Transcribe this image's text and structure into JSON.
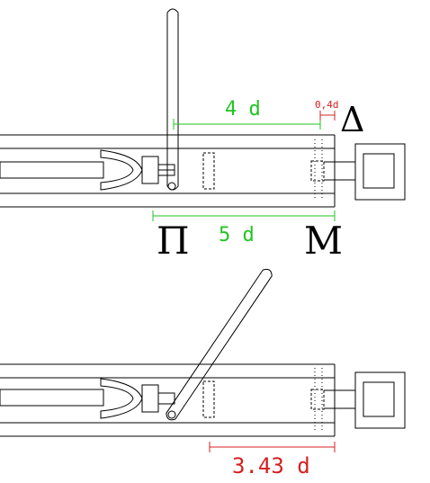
{
  "labels": {
    "dim_top": "4 d",
    "dim_small": "0,4d",
    "delta": "Δ",
    "dim_mid": "5 d",
    "left_letter": "П",
    "right_letter": "М",
    "dim_bottom": "3.43 d"
  },
  "colors": {
    "green": "#22c422",
    "red": "#d42020",
    "line": "#000000"
  }
}
